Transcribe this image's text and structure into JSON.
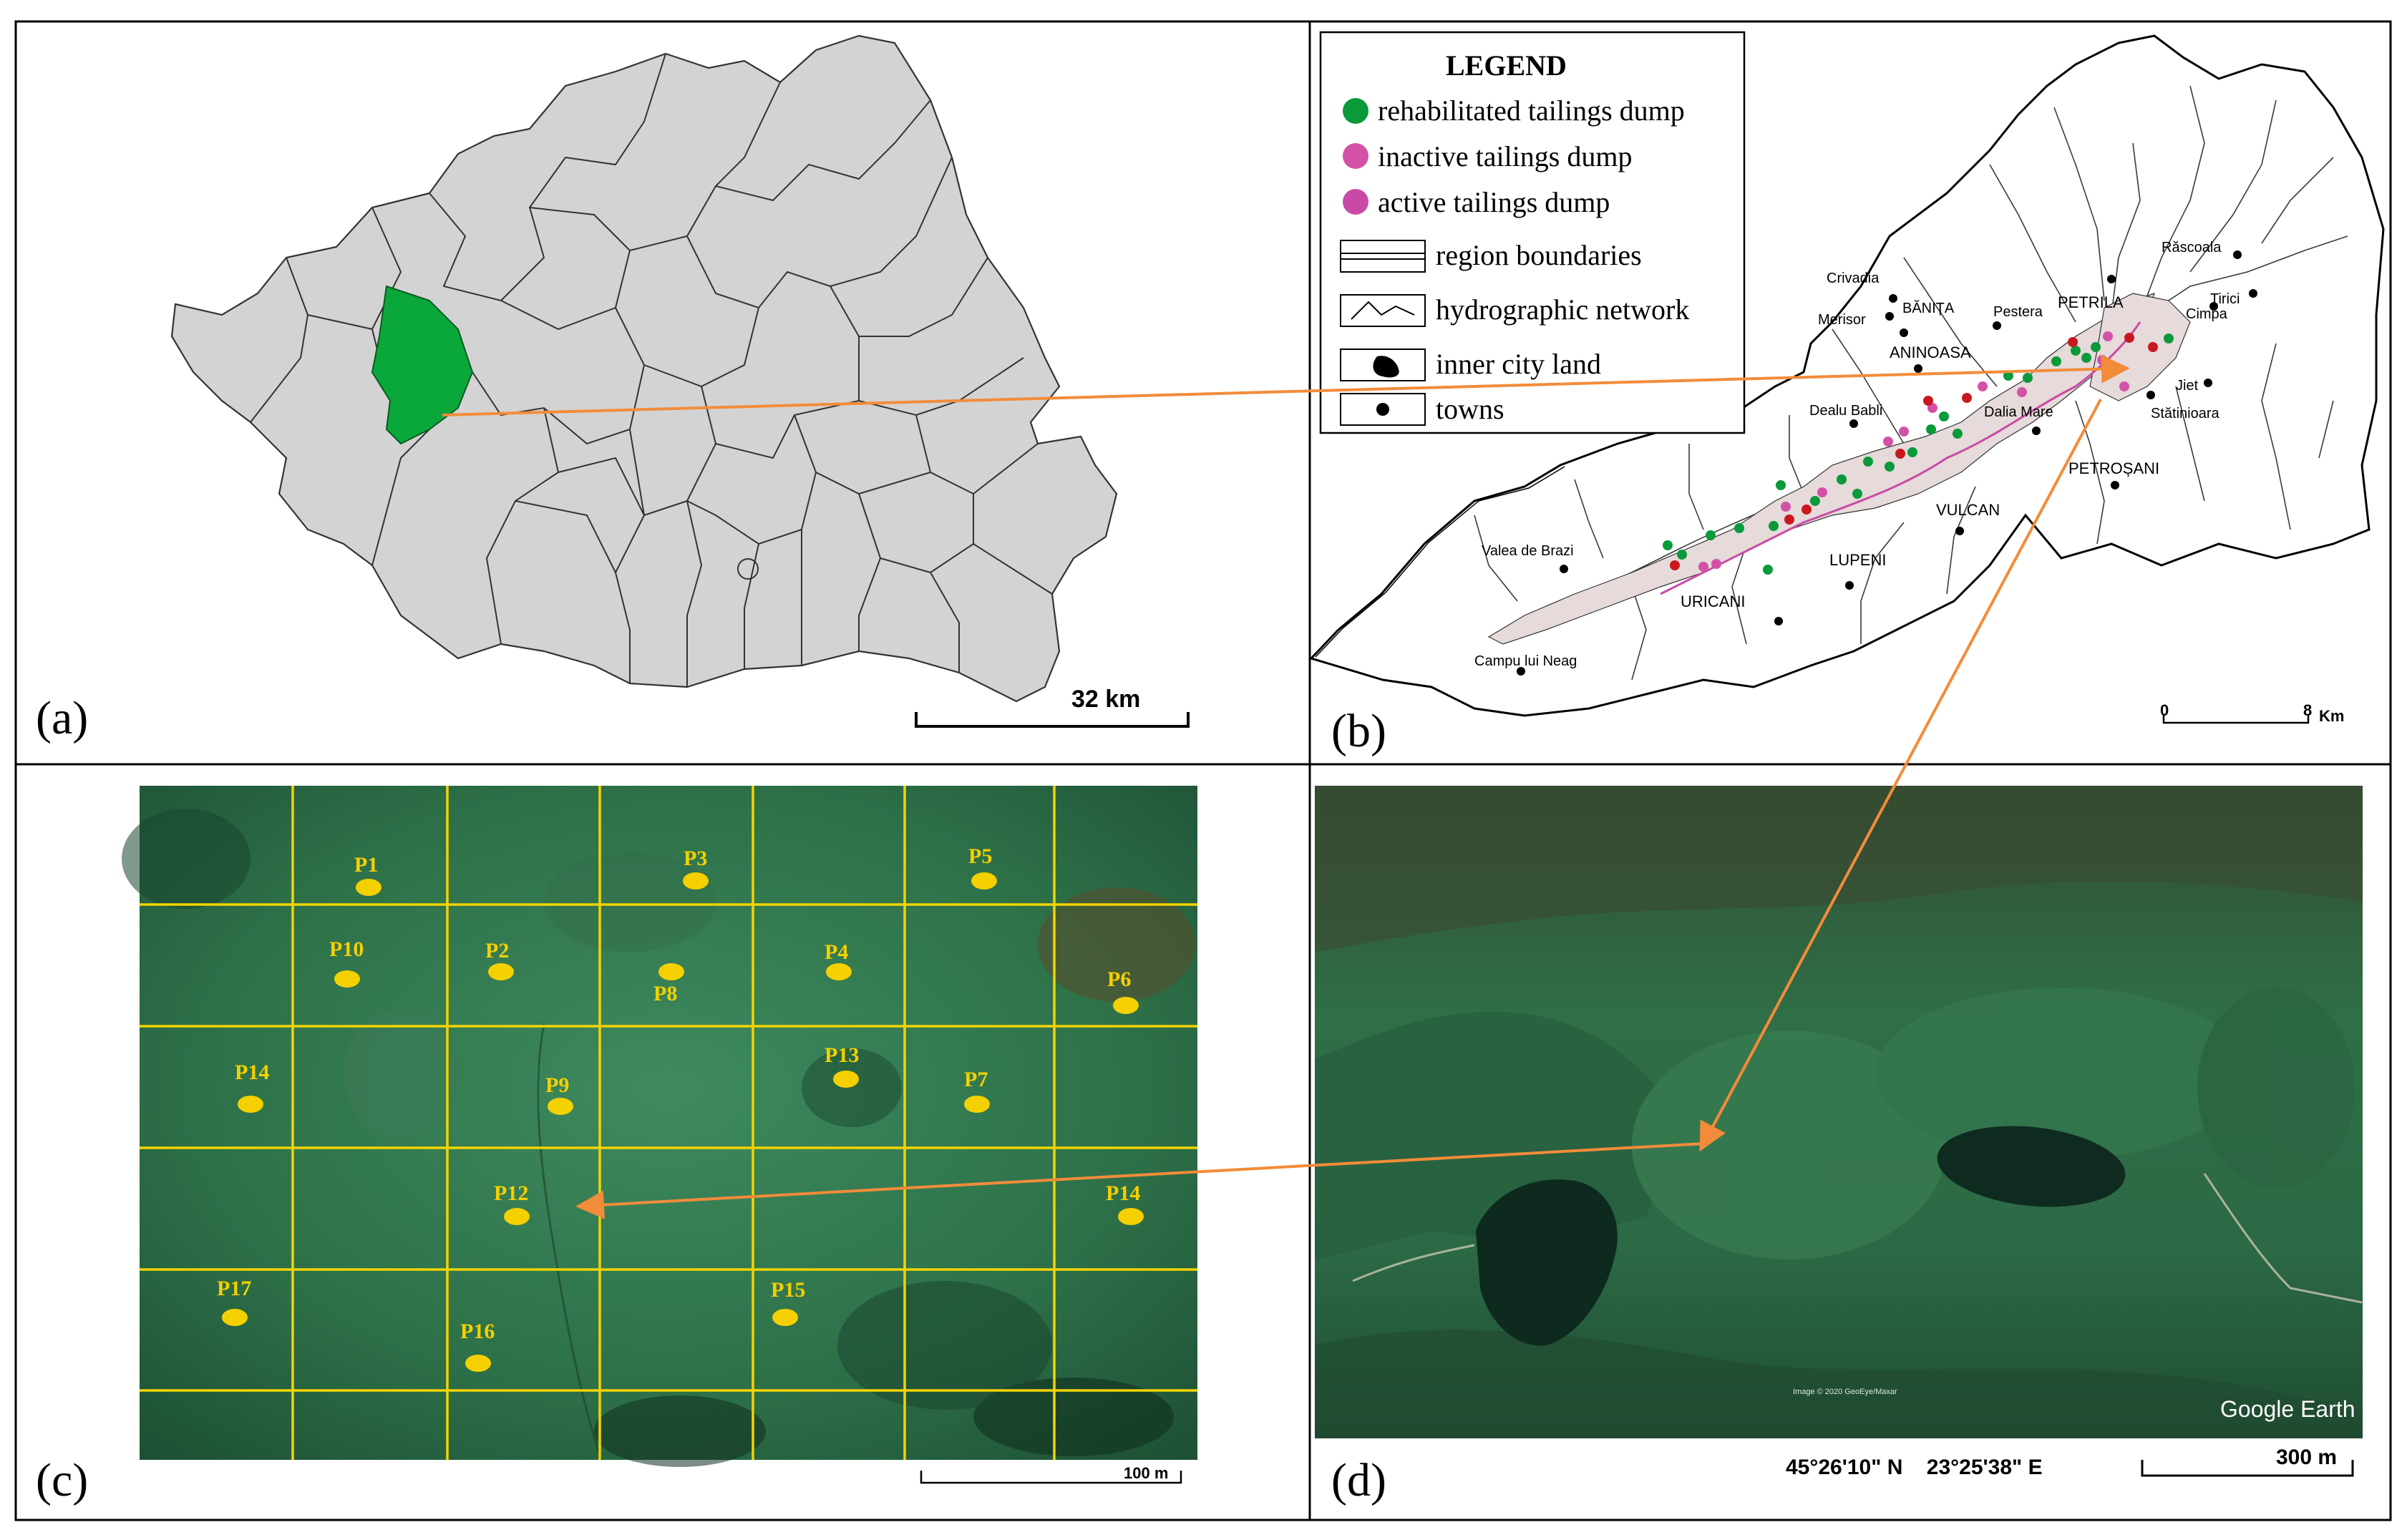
{
  "panels": {
    "a": {
      "letter": "(a)",
      "scale_label": "32 km",
      "colors": {
        "county": "#d3d3d3",
        "highlight": "#0aa83a",
        "border": "#333333"
      }
    },
    "b": {
      "letter": "(b)",
      "legend": {
        "title": "LEGEND",
        "items": [
          {
            "label": "rehabilitated tailings dump",
            "symbol": "green-dot-icon",
            "color": "#0a9a3a"
          },
          {
            "label": "inactive tailings dump",
            "symbol": "pink-dot-icon",
            "color": "#d451a8"
          },
          {
            "label": "active tailings dump",
            "symbol": "pink-dot-icon",
            "color": "#c94aa6"
          },
          {
            "label": "region boundaries",
            "symbol": "double-line-icon"
          },
          {
            "label": "hydrographic network",
            "symbol": "river-line-icon"
          },
          {
            "label": "inner city land",
            "symbol": "blob-icon"
          },
          {
            "label": "towns",
            "symbol": "black-dot-icon"
          }
        ]
      },
      "towns": [
        "Răscoala",
        "Tirici",
        "Cimpa",
        "Crivadia",
        "Merisor",
        "BĂNIȚA",
        "Pestera",
        "PETRILA",
        "ANINOASA",
        "Jiet",
        "Dealu Babli",
        "Dalia Mare",
        "Stătinioara",
        "PETROȘANI",
        "VULCAN",
        "LUPENI",
        "Valea de Brazi",
        "URICANI",
        "Campu lui Neag"
      ],
      "scale": {
        "start": "0",
        "end": "8",
        "unit": "Km"
      }
    },
    "c": {
      "letter": "(c)",
      "plots": [
        "P1",
        "P3",
        "P5",
        "P10",
        "P2",
        "P8",
        "P4",
        "P6",
        "P14",
        "P9",
        "P13",
        "P7",
        "P12",
        "P14",
        "P17",
        "P16",
        "P15"
      ],
      "scale_label": "100 m",
      "colors": {
        "grid": "#f3d400",
        "plot_marker": "#f5d000"
      }
    },
    "d": {
      "letter": "(d)",
      "coordinates": "45°26'10\" N    23°25'38\" E",
      "scale_label": "300 m",
      "watermark": "Google Earth",
      "image_credit": "Image © 2020 GeoEye/Maxar"
    }
  },
  "arrows": {
    "color": "#f28c3a"
  }
}
